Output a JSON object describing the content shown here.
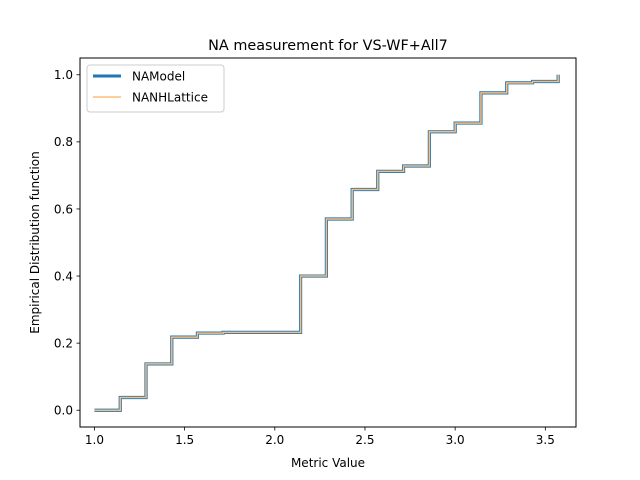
{
  "chart_data": {
    "type": "line",
    "title": "NA measurement for VS-WF+All7",
    "xlabel": "Metric Value",
    "ylabel": "Empirical Distribution function",
    "xlim": [
      0.92,
      3.67
    ],
    "ylim": [
      -0.05,
      1.05
    ],
    "xticks": [
      1.0,
      1.5,
      2.0,
      2.5,
      3.0,
      3.5
    ],
    "xtick_labels": [
      "1.0",
      "1.5",
      "2.0",
      "2.5",
      "3.0",
      "3.5"
    ],
    "yticks": [
      0.0,
      0.2,
      0.4,
      0.6,
      0.8,
      1.0
    ],
    "ytick_labels": [
      "0.0",
      "0.2",
      "0.4",
      "0.6",
      "0.8",
      "1.0"
    ],
    "grid": false,
    "legend_position": "top-left",
    "step": "post",
    "series": [
      {
        "name": "NAModel",
        "color": "#1f77b4",
        "x": [
          1.0,
          1.143,
          1.286,
          1.429,
          1.571,
          1.714,
          2.143,
          2.286,
          2.429,
          2.571,
          2.714,
          2.857,
          3.0,
          3.143,
          3.286,
          3.429,
          3.571,
          3.571
        ],
        "y": [
          0.0,
          0.038,
          0.138,
          0.218,
          0.23,
          0.232,
          0.4,
          0.57,
          0.658,
          0.712,
          0.728,
          0.83,
          0.856,
          0.946,
          0.976,
          0.98,
          0.98,
          1.0
        ]
      },
      {
        "name": "NANHLattice",
        "color": "#ffbb78",
        "x": [
          1.0,
          1.143,
          1.286,
          1.429,
          1.571,
          1.714,
          2.143,
          2.286,
          2.429,
          2.571,
          2.714,
          2.857,
          3.0,
          3.143,
          3.286,
          3.429,
          3.571,
          3.571
        ],
        "y": [
          0.0,
          0.038,
          0.138,
          0.218,
          0.23,
          0.232,
          0.4,
          0.57,
          0.658,
          0.712,
          0.728,
          0.83,
          0.856,
          0.946,
          0.976,
          0.98,
          0.98,
          1.0
        ]
      }
    ]
  }
}
